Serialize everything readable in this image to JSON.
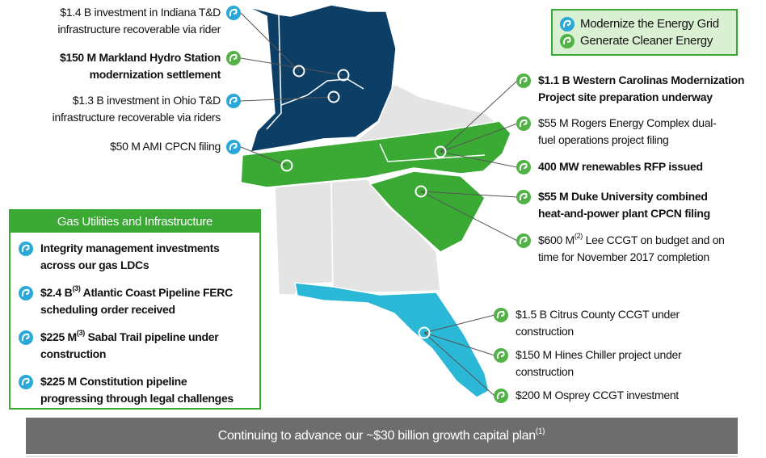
{
  "legend": {
    "items": [
      "Modernize the Energy Grid",
      "Generate Cleaner Energy"
    ]
  },
  "left_callouts": [
    {
      "lines": [
        "$1.4 B investment in Indiana T&D",
        "infrastructure recoverable via rider"
      ]
    },
    {
      "lines": [
        "$150 M Markland Hydro Station",
        "modernization settlement"
      ],
      "bold": true
    },
    {
      "lines": [
        "$1.3 B investment in Ohio T&D",
        "infrastructure recoverable via riders"
      ]
    },
    {
      "lines": [
        "$50 M AMI CPCN filing"
      ]
    }
  ],
  "right_callouts": [
    {
      "lines": [
        "$1.1 B Western Carolinas Modernization",
        "Project site preparation underway"
      ],
      "bold": true
    },
    {
      "lines": [
        "$55 M Rogers Energy Complex dual-",
        "fuel operations project filing"
      ]
    },
    {
      "lines": [
        "400 MW renewables RFP issued"
      ],
      "bold": true
    },
    {
      "lines": [
        "$55 M Duke University combined",
        "heat-and-power plant CPCN filing"
      ],
      "bold": true
    },
    {
      "lead": "$600 M",
      "sup": "(2)",
      "lines": [
        " Lee CCGT on budget and on",
        "time for November 2017 completion"
      ]
    },
    {
      "lines": [
        "$1.5 B Citrus County CCGT under",
        "construction"
      ]
    },
    {
      "lines": [
        "$150 M Hines Chiller project under",
        "construction"
      ]
    },
    {
      "lines": [
        "$200 M Osprey CCGT investment"
      ]
    }
  ],
  "gas_box": {
    "title": "Gas Utilities and Infrastructure",
    "items": [
      {
        "lines": [
          "Integrity management investments",
          "across our gas LDCs"
        ],
        "bold": true
      },
      {
        "lead": "$2.4 B",
        "sup": "(3)",
        "lines": [
          " Atlantic Coast Pipeline FERC",
          "scheduling order received"
        ],
        "bold": true
      },
      {
        "lead": "$225 M",
        "sup": "(3)",
        "lines": [
          " Sabal Trail pipeline under",
          "construction"
        ],
        "bold": true
      },
      {
        "lines": [
          "$225 M Constitution pipeline",
          "progressing through legal challenges"
        ],
        "bold": true
      }
    ]
  },
  "footer": {
    "text": "Continuing to advance our ~$30 billion growth capital plan",
    "sup": "(1)"
  }
}
